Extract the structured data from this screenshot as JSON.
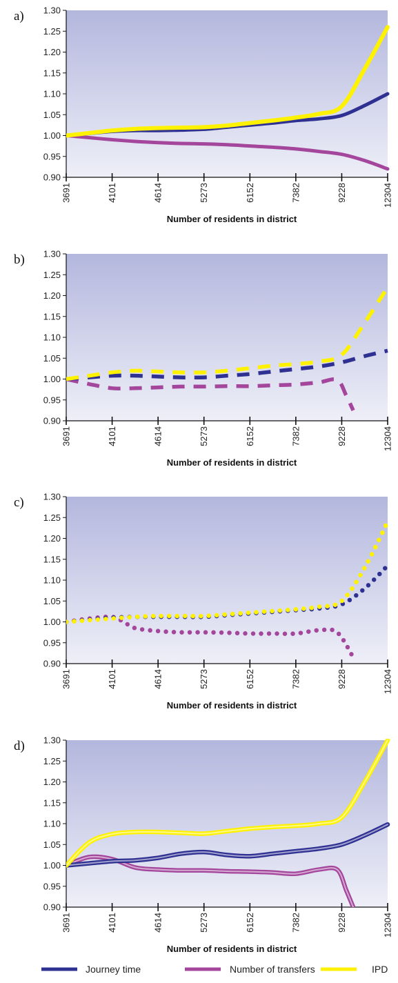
{
  "colors": {
    "journey": "#2e3092",
    "transfers": "#a3469c",
    "ipd": "#fff200"
  },
  "legend": [
    {
      "label": "Journey time",
      "color": "#2e3092"
    },
    {
      "label": "Number of transfers",
      "color": "#a3469c"
    },
    {
      "label": "IPD",
      "color": "#fff200"
    }
  ],
  "chart_data": [
    {
      "panel_label": "a)",
      "type": "line",
      "line_style": "solid",
      "xlabel": "Number of residents in district",
      "categories": [
        "3691",
        "4101",
        "4614",
        "5273",
        "6152",
        "7382",
        "9228",
        "12304"
      ],
      "y_ticks": [
        "0.90",
        "0.95",
        "1.00",
        "1.05",
        "1.10",
        "1.15",
        "1.20",
        "1.25",
        "1.30"
      ],
      "ylim": [
        0.9,
        1.3
      ],
      "series": [
        {
          "name": "Journey time",
          "key": "journey",
          "x": [
            0,
            0.5,
            1,
            1.5,
            2,
            2.5,
            3,
            3.5,
            4,
            4.5,
            5,
            5.5,
            6,
            6.5,
            7
          ],
          "values": [
            1.0,
            1.005,
            1.01,
            1.012,
            1.012,
            1.013,
            1.015,
            1.02,
            1.025,
            1.03,
            1.036,
            1.04,
            1.048,
            1.072,
            1.1
          ]
        },
        {
          "name": "Number of transfers",
          "key": "transfers",
          "x": [
            0,
            0.5,
            1,
            1.5,
            2,
            2.5,
            3,
            3.5,
            4,
            4.5,
            5,
            5.5,
            6,
            6.5,
            7
          ],
          "values": [
            1.0,
            0.995,
            0.99,
            0.986,
            0.983,
            0.981,
            0.98,
            0.978,
            0.975,
            0.972,
            0.968,
            0.962,
            0.955,
            0.94,
            0.92
          ]
        },
        {
          "name": "IPD",
          "key": "ipd",
          "x": [
            0,
            0.5,
            1,
            1.5,
            2,
            2.5,
            3,
            3.5,
            4,
            4.5,
            5,
            5.5,
            6,
            6.5,
            7
          ],
          "values": [
            1.0,
            1.006,
            1.012,
            1.016,
            1.018,
            1.019,
            1.02,
            1.024,
            1.03,
            1.036,
            1.043,
            1.052,
            1.07,
            1.16,
            1.26
          ]
        }
      ]
    },
    {
      "panel_label": "b)",
      "type": "line",
      "line_style": "dashed",
      "xlabel": "Number of residents in district",
      "categories": [
        "3691",
        "4101",
        "4614",
        "5273",
        "6152",
        "7382",
        "9228",
        "12304"
      ],
      "y_ticks": [
        "0.90",
        "0.95",
        "1.00",
        "1.05",
        "1.10",
        "1.15",
        "1.20",
        "1.25",
        "1.30"
      ],
      "ylim": [
        0.9,
        1.3
      ],
      "series": [
        {
          "name": "Journey time",
          "key": "journey",
          "x": [
            0,
            0.5,
            1,
            1.5,
            2,
            2.5,
            3,
            3.5,
            4,
            4.5,
            5,
            5.5,
            6,
            6.5,
            7
          ],
          "values": [
            1.0,
            1.004,
            1.008,
            1.008,
            1.006,
            1.004,
            1.004,
            1.008,
            1.012,
            1.018,
            1.024,
            1.03,
            1.04,
            1.055,
            1.068
          ]
        },
        {
          "name": "Number of transfers",
          "key": "transfers",
          "x": [
            0,
            0.5,
            1,
            1.5,
            2,
            2.5,
            3,
            3.5,
            4,
            4.5,
            5,
            5.5,
            5.9,
            6.1,
            6.25
          ],
          "values": [
            1.0,
            0.988,
            0.978,
            0.978,
            0.98,
            0.982,
            0.982,
            0.983,
            0.983,
            0.985,
            0.987,
            0.992,
            0.998,
            0.96,
            0.925
          ]
        },
        {
          "name": "IPD",
          "key": "ipd",
          "x": [
            0,
            0.5,
            1,
            1.5,
            2,
            2.5,
            3,
            3.5,
            4,
            4.5,
            5,
            5.5,
            6,
            6.5,
            7
          ],
          "values": [
            1.0,
            1.008,
            1.016,
            1.02,
            1.018,
            1.016,
            1.016,
            1.02,
            1.026,
            1.032,
            1.036,
            1.042,
            1.058,
            1.135,
            1.22
          ]
        }
      ]
    },
    {
      "panel_label": "c)",
      "type": "line",
      "line_style": "dotted",
      "xlabel": "Number of residents in district",
      "categories": [
        "3691",
        "4101",
        "4614",
        "5273",
        "6152",
        "7382",
        "9228",
        "12304"
      ],
      "y_ticks": [
        "0.90",
        "0.95",
        "1.00",
        "1.05",
        "1.10",
        "1.15",
        "1.20",
        "1.25",
        "1.30"
      ],
      "ylim": [
        0.9,
        1.3
      ],
      "series": [
        {
          "name": "Journey time",
          "key": "journey",
          "x": [
            0,
            0.5,
            1,
            1.5,
            2,
            2.5,
            3,
            3.5,
            4,
            4.5,
            5,
            5.5,
            6,
            6.5,
            7
          ],
          "values": [
            1.0,
            1.005,
            1.01,
            1.012,
            1.012,
            1.012,
            1.012,
            1.016,
            1.02,
            1.024,
            1.028,
            1.032,
            1.042,
            1.08,
            1.135
          ]
        },
        {
          "name": "Number of transfers",
          "key": "transfers",
          "x": [
            0,
            0.5,
            1,
            1.25,
            1.5,
            2,
            2.5,
            3,
            3.5,
            4,
            4.5,
            5,
            5.5,
            5.9,
            6.25
          ],
          "values": [
            1.0,
            1.008,
            1.012,
            1.0,
            0.985,
            0.978,
            0.975,
            0.975,
            0.974,
            0.972,
            0.972,
            0.972,
            0.98,
            0.975,
            0.915
          ]
        },
        {
          "name": "IPD",
          "key": "ipd",
          "x": [
            0,
            0.5,
            1,
            1.5,
            2,
            2.5,
            3,
            3.5,
            4,
            4.5,
            5,
            5.5,
            6,
            6.5,
            7
          ],
          "values": [
            1.0,
            1.004,
            1.008,
            1.012,
            1.014,
            1.014,
            1.014,
            1.018,
            1.022,
            1.026,
            1.03,
            1.036,
            1.05,
            1.13,
            1.24
          ]
        }
      ]
    },
    {
      "panel_label": "d)",
      "type": "line",
      "line_style": "double",
      "xlabel": "Number of residents in district",
      "categories": [
        "3691",
        "4101",
        "4614",
        "5273",
        "6152",
        "7382",
        "9228",
        "12304"
      ],
      "y_ticks": [
        "0.90",
        "0.95",
        "1.00",
        "1.05",
        "1.10",
        "1.15",
        "1.20",
        "1.25",
        "1.30"
      ],
      "ylim": [
        0.9,
        1.3
      ],
      "series": [
        {
          "name": "Journey time",
          "key": "journey",
          "x": [
            0,
            0.5,
            1,
            1.5,
            2,
            2.5,
            3,
            3.5,
            4,
            4.5,
            5,
            5.5,
            6,
            6.5,
            7
          ],
          "values": [
            1.0,
            1.005,
            1.01,
            1.012,
            1.018,
            1.028,
            1.032,
            1.025,
            1.022,
            1.028,
            1.034,
            1.04,
            1.05,
            1.072,
            1.098
          ]
        },
        {
          "name": "Number of transfers",
          "key": "transfers",
          "x": [
            0,
            0.5,
            1,
            1.5,
            2,
            2.5,
            3,
            3.5,
            4,
            4.5,
            5,
            5.5,
            5.9,
            6.1,
            6.25
          ],
          "values": [
            1.0,
            1.02,
            1.015,
            0.995,
            0.99,
            0.988,
            0.988,
            0.986,
            0.985,
            0.983,
            0.98,
            0.99,
            0.99,
            0.94,
            0.9
          ]
        },
        {
          "name": "IPD",
          "key": "ipd",
          "x": [
            0,
            0.5,
            1,
            1.5,
            2,
            2.5,
            3,
            3.5,
            4,
            4.5,
            5,
            5.5,
            6,
            6.5,
            7
          ],
          "values": [
            1.0,
            1.055,
            1.075,
            1.08,
            1.08,
            1.078,
            1.076,
            1.082,
            1.088,
            1.092,
            1.095,
            1.1,
            1.115,
            1.2,
            1.3
          ]
        }
      ]
    }
  ]
}
